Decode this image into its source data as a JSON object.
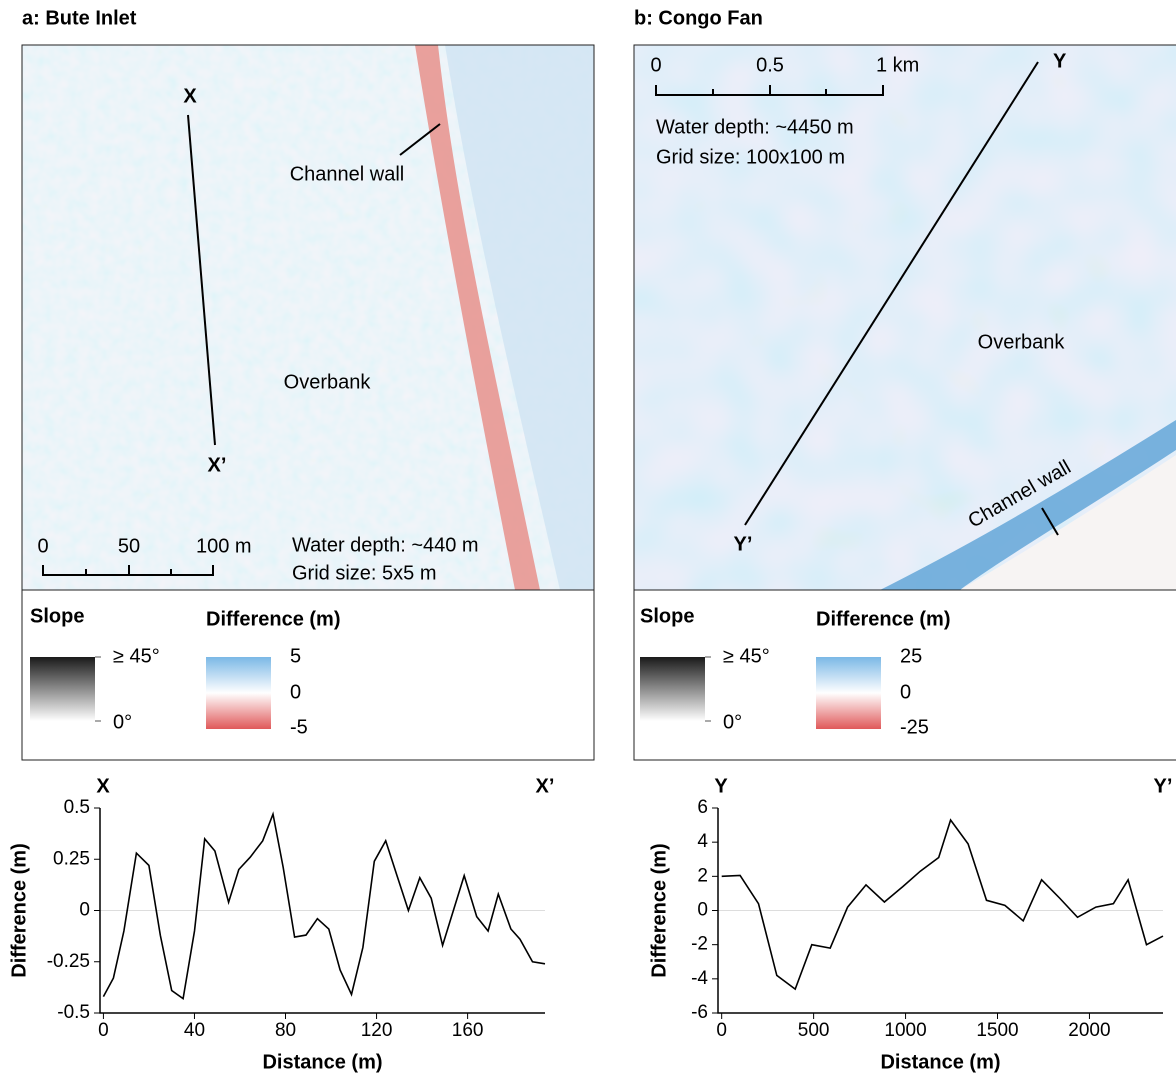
{
  "panels": [
    {
      "title": "a: Bute Inlet",
      "markers": [
        "X",
        "X’"
      ],
      "channel_label": "Channel wall",
      "overbank_label": "Overbank",
      "scale_labels": [
        "0",
        "50",
        "100 m"
      ],
      "water_depth": "Water depth: ~440 m",
      "grid_size": "Grid size: 5x5 m",
      "legend": {
        "slope_title": "Slope",
        "slope_max": "≥ 45°",
        "slope_min": "0°",
        "diff_title": "Difference (m)",
        "diff_ticks": [
          5,
          0,
          -5
        ]
      }
    },
    {
      "title": "b: Congo Fan",
      "markers": [
        "Y",
        "Y’"
      ],
      "channel_label": "Channel wall",
      "overbank_label": "Overbank",
      "scale_labels": [
        "0",
        "0.5",
        "1 km"
      ],
      "water_depth": "Water depth: ~4450 m",
      "grid_size": "Grid size: 100x100 m",
      "legend": {
        "slope_title": "Slope",
        "slope_max": "≥ 45°",
        "slope_min": "0°",
        "diff_title": "Difference (m)",
        "diff_ticks": [
          25,
          0,
          -25
        ]
      }
    }
  ],
  "chart_data": [
    {
      "type": "line",
      "annotations": [
        "X",
        "X’"
      ],
      "xlabel": "Distance (m)",
      "ylabel": "Difference (m)",
      "color": "#000000",
      "zero_line": true,
      "x": [
        0,
        4.4,
        9,
        14.5,
        20,
        25,
        30,
        35,
        40,
        44.5,
        49,
        55,
        59.5,
        64.5,
        70,
        74.5,
        79,
        84,
        89,
        94,
        99,
        104,
        109,
        114,
        119,
        124,
        129,
        134,
        139,
        144,
        149,
        154,
        158.5,
        164,
        169,
        173.5,
        179,
        183,
        188.5,
        194
      ],
      "values": [
        -0.42,
        -0.33,
        -0.1,
        0.28,
        0.22,
        -0.12,
        -0.39,
        -0.43,
        -0.1,
        0.35,
        0.29,
        0.04,
        0.2,
        0.26,
        0.34,
        0.47,
        0.21,
        -0.13,
        -0.12,
        -0.04,
        -0.09,
        -0.29,
        -0.41,
        -0.18,
        0.24,
        0.34,
        0.17,
        0,
        0.16,
        0.06,
        -0.17,
        0.01,
        0.17,
        -0.03,
        -0.1,
        0.08,
        -0.09,
        -0.14,
        -0.25,
        -0.26
      ],
      "xlim": [
        -1.5,
        194
      ],
      "ylim": [
        -0.5,
        0.5
      ],
      "xticks": [
        0,
        40,
        80,
        120,
        160
      ],
      "yticks": [
        0.5,
        0.25,
        0,
        -0.25,
        -0.5
      ]
    },
    {
      "type": "line",
      "annotations": [
        "Y",
        "Y’"
      ],
      "xlabel": "Distance (m)",
      "ylabel": "Difference (m)",
      "color": "#000000",
      "zero_line": true,
      "x": [
        0,
        100,
        200,
        300,
        400,
        490,
        590,
        685,
        785,
        885,
        985,
        1080,
        1180,
        1245,
        1340,
        1440,
        1540,
        1640,
        1740,
        1840,
        1935,
        2035,
        2130,
        2210,
        2310,
        2400
      ],
      "values": [
        2.0,
        2.05,
        0.4,
        -3.8,
        -4.6,
        -2.0,
        -2.2,
        0.2,
        1.5,
        0.5,
        1.4,
        2.3,
        3.1,
        5.3,
        3.9,
        0.6,
        0.3,
        -0.6,
        1.8,
        0.7,
        -0.4,
        0.2,
        0.4,
        1.8,
        -2.0,
        -1.5
      ],
      "xlim": [
        -20,
        2400
      ],
      "ylim": [
        -6,
        6
      ],
      "xticks": [
        0,
        500,
        1000,
        1500,
        2000
      ],
      "yticks": [
        6,
        4,
        2,
        0,
        -2,
        -4,
        -6
      ]
    }
  ]
}
